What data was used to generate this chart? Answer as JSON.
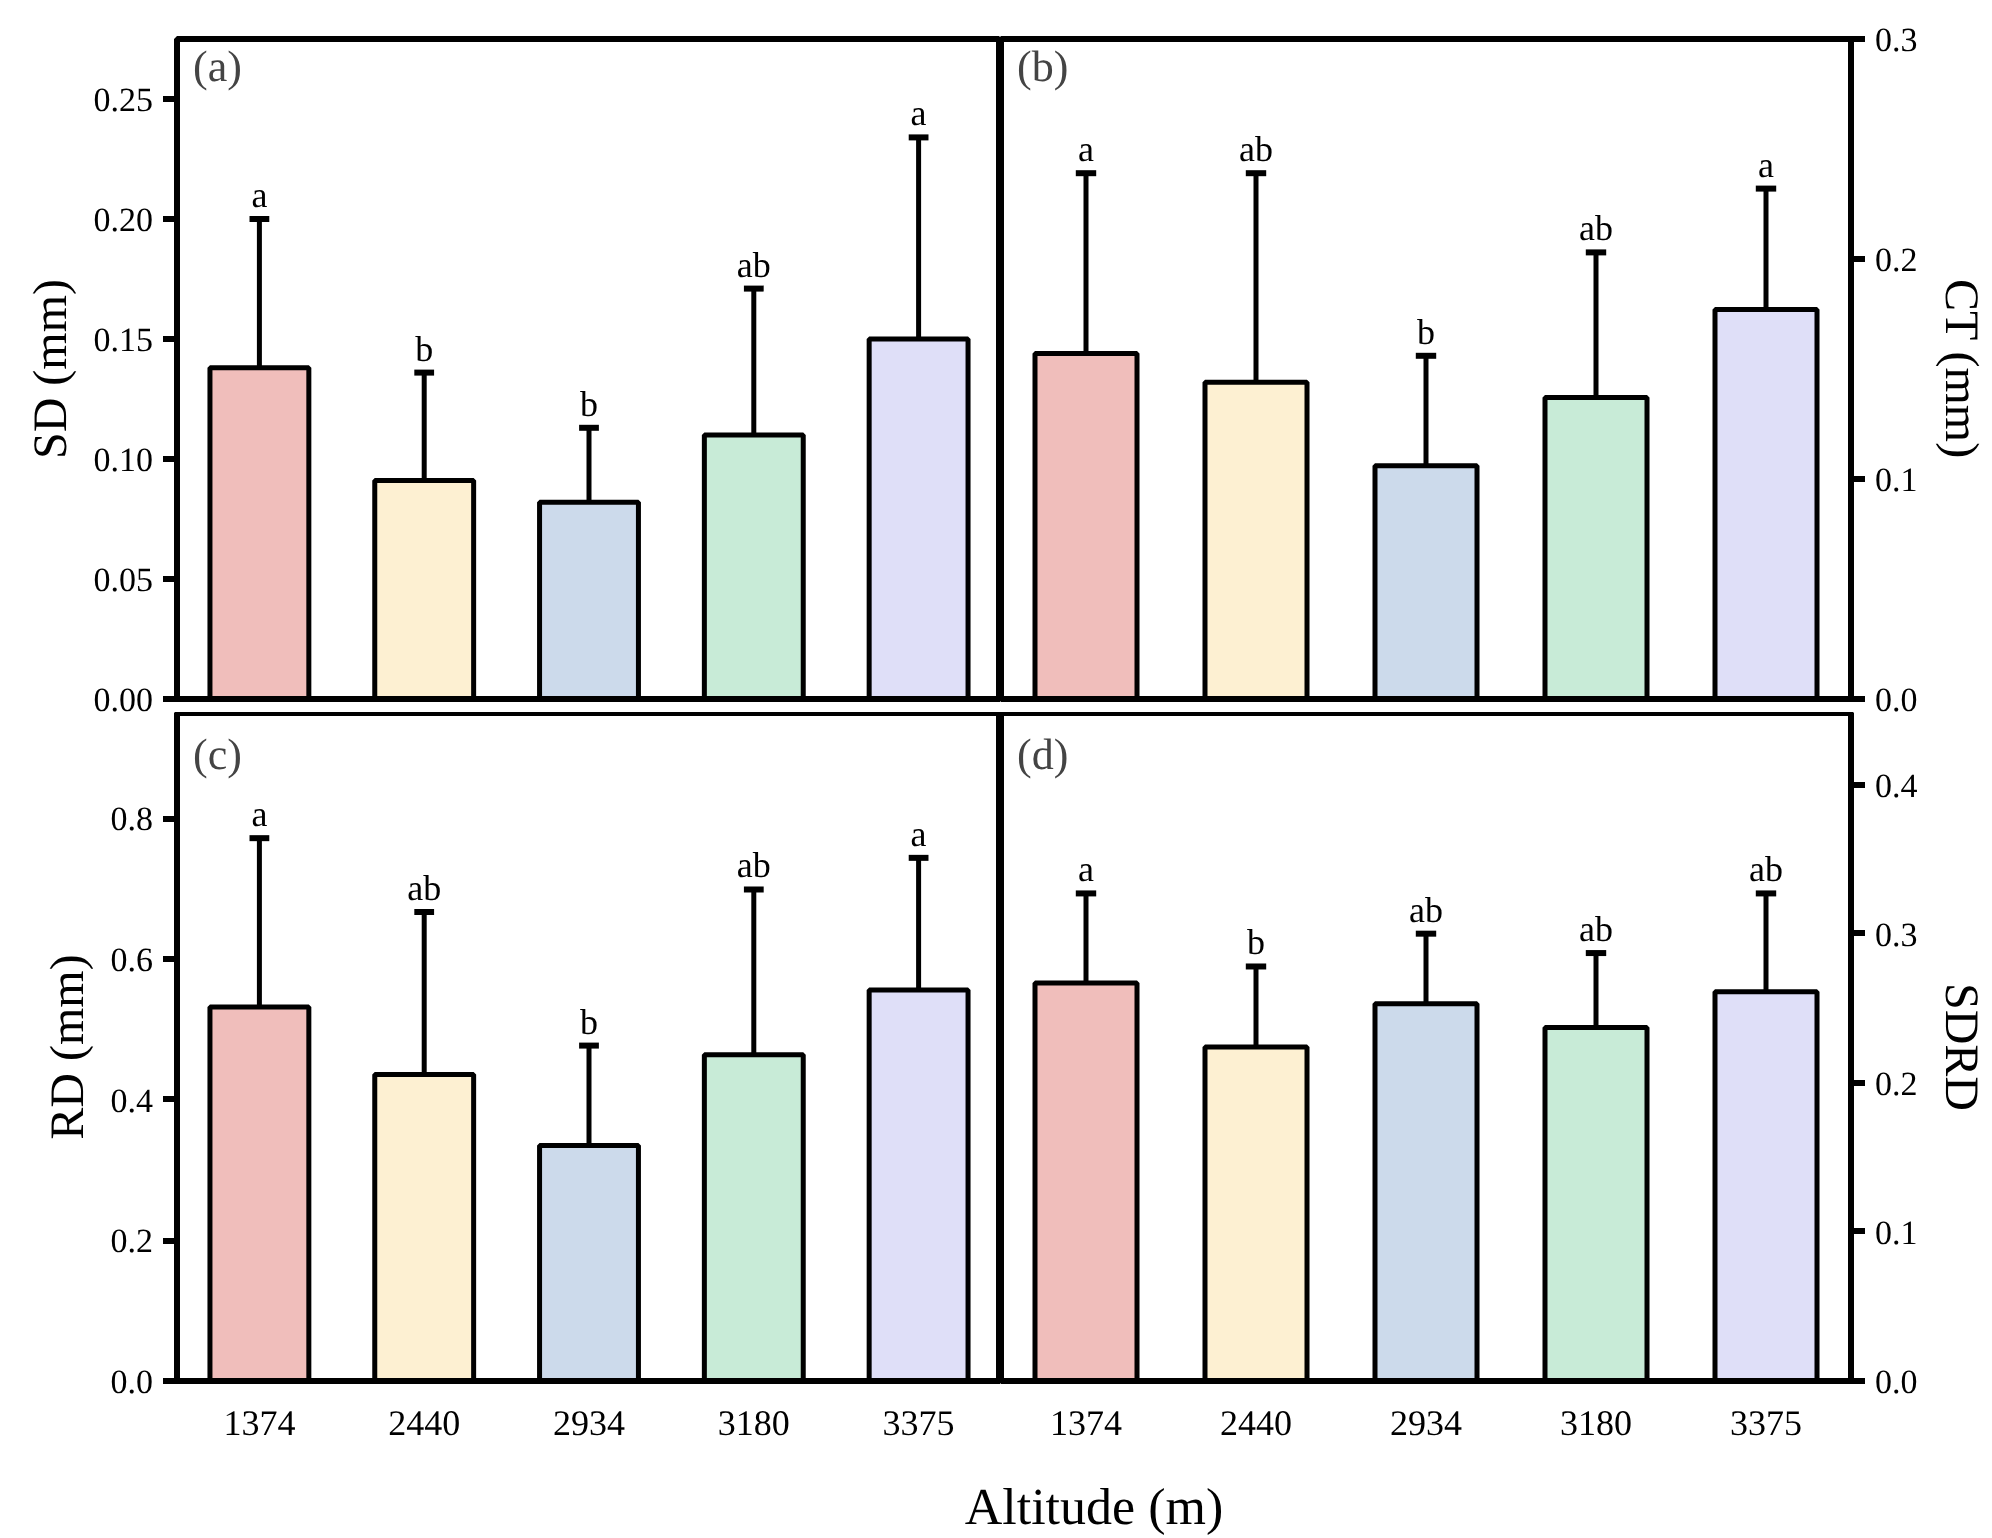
{
  "chart_data": [
    {
      "type": "bar",
      "categories": [
        "1374",
        "2440",
        "2934",
        "3180",
        "3375"
      ],
      "ylabel": "SD (mm)",
      "ylim": [
        0,
        0.275
      ],
      "yticks": [
        {
          "value": 0,
          "label": "0.00"
        },
        0.05,
        {
          "value": 0.1,
          "label": "0.10"
        },
        0.15,
        {
          "value": 0.2,
          "label": "0.20"
        },
        0.25
      ],
      "tick_labels": "y",
      "series": [
        {
          "colors": [
            "#f0bebb",
            "#fdf0d2",
            "#ccdaeb",
            "#c8ebd7",
            "#dfdff8"
          ],
          "values": [
            0.138,
            0.091,
            0.082,
            0.11,
            0.15
          ],
          "errors": [
            [
              0.138,
              0.2
            ],
            [
              0.091,
              0.136
            ],
            [
              0.082,
              0.113
            ],
            [
              0.11,
              0.171
            ],
            [
              0.15,
              0.234
            ]
          ]
        }
      ],
      "annotations": [
        "(a)",
        {
          "text": "a",
          "x": "1374",
          "y": 0.2
        },
        {
          "text": "b",
          "x": "2440",
          "y": 0.136
        },
        {
          "text": "b",
          "x": "2934",
          "y": 0.113
        },
        {
          "text": "ab",
          "x": "3180",
          "y": 0.171
        },
        {
          "text": "a",
          "x": "3375",
          "y": 0.234
        }
      ]
    },
    {
      "type": "bar",
      "categories": [
        "1374",
        "2440",
        "2934",
        "3180",
        "3375"
      ],
      "ylabel": "CT (mm)",
      "ylim": [
        0,
        0.3
      ],
      "yticks": [
        {
          "value": 0,
          "label": "0.0"
        },
        0.1,
        0.2,
        0.3
      ],
      "tick_labels": "y",
      "series": [
        {
          "colors": [
            "#f0bebb",
            "#fdf0d2",
            "#ccdaeb",
            "#c8ebd7",
            "#dfdff8"
          ],
          "values": [
            0.157,
            0.144,
            0.106,
            0.137,
            0.177
          ],
          "errors": [
            [
              0.157,
              0.239
            ],
            [
              0.144,
              0.239
            ],
            [
              0.106,
              0.156
            ],
            [
              0.137,
              0.203
            ],
            [
              0.177,
              0.232
            ]
          ]
        }
      ],
      "annotations": [
        "(b)",
        {
          "text": "a",
          "x": "1374",
          "y": 0.239
        },
        {
          "text": "ab",
          "x": "2440",
          "y": 0.239
        },
        {
          "text": "b",
          "x": "2934",
          "y": 0.156
        },
        {
          "text": "ab",
          "x": "3180",
          "y": 0.203
        },
        {
          "text": "a",
          "x": "3375",
          "y": 0.232
        }
      ]
    },
    {
      "type": "bar",
      "categories": [
        "1374",
        "2440",
        "2934",
        "3180",
        "3375"
      ],
      "ylabel": "RD (mm)",
      "xlabel": "Altitude (m)",
      "ylim": [
        0,
        0.95
      ],
      "yticks": [
        {
          "value": 0,
          "label": "0.0"
        },
        0.2,
        0.4,
        0.6,
        0.8
      ],
      "series": [
        {
          "colors": [
            "#f0bebb",
            "#fdf0d2",
            "#ccdaeb",
            "#c8ebd7",
            "#dfdff8"
          ],
          "values": [
            0.532,
            0.436,
            0.335,
            0.464,
            0.556
          ],
          "errors": [
            [
              0.532,
              0.772
            ],
            [
              0.436,
              0.667
            ],
            [
              0.335,
              0.477
            ],
            [
              0.464,
              0.699
            ],
            [
              0.556,
              0.744
            ]
          ]
        }
      ],
      "annotations": [
        "(c)",
        {
          "text": "a",
          "x": "1374",
          "y": 0.772
        },
        {
          "text": "ab",
          "x": "2440",
          "y": 0.667
        },
        {
          "text": "b",
          "x": "2934",
          "y": 0.477
        },
        {
          "text": "ab",
          "x": "3180",
          "y": 0.699
        },
        {
          "text": "a",
          "x": "3375",
          "y": 0.744
        }
      ]
    },
    {
      "type": "bar",
      "categories": [
        "1374",
        "2440",
        "2934",
        "3180",
        "3375"
      ],
      "ylabel": "SDRD",
      "ylim": [
        0,
        0.448
      ],
      "yticks": [
        {
          "value": 0,
          "label": "0.0"
        },
        0.1,
        0.2,
        0.3,
        0.4
      ],
      "series": [
        {
          "colors": [
            "#f0bebb",
            "#fdf0d2",
            "#ccdaeb",
            "#c8ebd7",
            "#dfdff8"
          ],
          "values": [
            0.267,
            0.224,
            0.253,
            0.237,
            0.261
          ],
          "errors": [
            [
              0.267,
              0.327
            ],
            [
              0.224,
              0.278
            ],
            [
              0.253,
              0.3
            ],
            [
              0.237,
              0.287
            ],
            [
              0.261,
              0.327
            ]
          ]
        }
      ],
      "annotations": [
        "(d)",
        {
          "text": "a",
          "x": "1374",
          "y": 0.327
        },
        {
          "text": "b",
          "x": "2440",
          "y": 0.278
        },
        {
          "text": "ab",
          "x": "2934",
          "y": 0.3
        },
        {
          "text": "ab",
          "x": "3180",
          "y": 0.287
        },
        {
          "text": "ab",
          "x": "3375",
          "y": 0.327
        }
      ]
    }
  ]
}
